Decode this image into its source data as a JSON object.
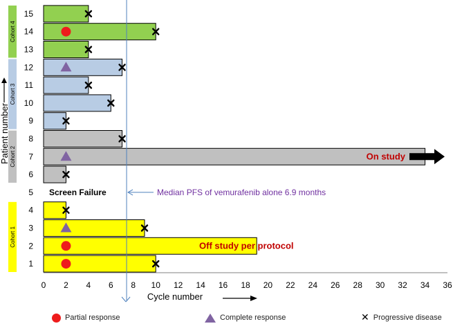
{
  "chart_data": {
    "type": "bar",
    "orientation": "horizontal",
    "xlabel": "Cycle number",
    "ylabel": "Patient number",
    "xlim": [
      0,
      36
    ],
    "xticks": [
      0,
      2,
      4,
      6,
      8,
      10,
      12,
      14,
      16,
      18,
      20,
      22,
      24,
      26,
      28,
      30,
      32,
      34,
      36
    ],
    "grid": false,
    "patients": [
      {
        "id": "1",
        "cycles": 10,
        "cohort": "Cohort 1",
        "response": "partial",
        "progressive_at": 10
      },
      {
        "id": "2",
        "cycles": 19,
        "cohort": "Cohort 1",
        "response": "partial",
        "progressive_at": null
      },
      {
        "id": "3",
        "cycles": 9,
        "cohort": "Cohort 1",
        "response": "complete",
        "progressive_at": 9
      },
      {
        "id": "4",
        "cycles": 2,
        "cohort": "Cohort 1",
        "response": null,
        "progressive_at": 2
      },
      {
        "id": "5",
        "cycles": 0,
        "cohort": null,
        "response": null,
        "progressive_at": null
      },
      {
        "id": "6",
        "cycles": 2,
        "cohort": "Cohort 2",
        "response": null,
        "progressive_at": 2
      },
      {
        "id": "7",
        "cycles": 34,
        "cohort": "Cohort 2",
        "response": "complete",
        "progressive_at": null
      },
      {
        "id": "8",
        "cycles": 7,
        "cohort": "Cohort 2",
        "response": null,
        "progressive_at": 7
      },
      {
        "id": "9",
        "cycles": 2,
        "cohort": "Cohort 3",
        "response": null,
        "progressive_at": 2
      },
      {
        "id": "10",
        "cycles": 6,
        "cohort": "Cohort 3",
        "response": null,
        "progressive_at": 6
      },
      {
        "id": "11",
        "cycles": 4,
        "cohort": "Cohort 3",
        "response": null,
        "progressive_at": 4
      },
      {
        "id": "12",
        "cycles": 7,
        "cohort": "Cohort 3",
        "response": "complete",
        "progressive_at": 7
      },
      {
        "id": "13",
        "cycles": 4,
        "cohort": "Cohort 4",
        "response": null,
        "progressive_at": 4
      },
      {
        "id": "14",
        "cycles": 10,
        "cohort": "Cohort 4",
        "response": "partial",
        "progressive_at": 10
      },
      {
        "id": "15",
        "cycles": 4,
        "cohort": "Cohort 4",
        "response": null,
        "progressive_at": 4
      }
    ],
    "response_marker_x": 2,
    "cohorts": [
      {
        "name": "Cohort 1",
        "patients": [
          "1",
          "2",
          "3",
          "4"
        ],
        "color": "#ffff00"
      },
      {
        "name": "Cohort 2",
        "patients": [
          "6",
          "7",
          "8"
        ],
        "color": "#c0c0c0"
      },
      {
        "name": "Cohort 3",
        "patients": [
          "9",
          "10",
          "11",
          "12"
        ],
        "color": "#b8cce4"
      },
      {
        "name": "Cohort 4",
        "patients": [
          "13",
          "14",
          "15"
        ],
        "color": "#92d050"
      }
    ],
    "annotations": {
      "screen_failure": "Screen Failure",
      "median_pfs": "Median PFS of vemurafenib alone 6.9 months",
      "median_pfs_value": 7.4,
      "on_study": "On study",
      "off_study": "Off study per protocol"
    },
    "legend": {
      "partial": "Partial response",
      "complete": "Complete response",
      "progressive": "Progressive disease"
    },
    "colors": {
      "partial": "#ee1c1c",
      "complete": "#8064a2",
      "progressive": "#000000",
      "median_line": "#4f81bd",
      "annotation_text": "#7030a0",
      "status_text": "#c00000"
    }
  }
}
